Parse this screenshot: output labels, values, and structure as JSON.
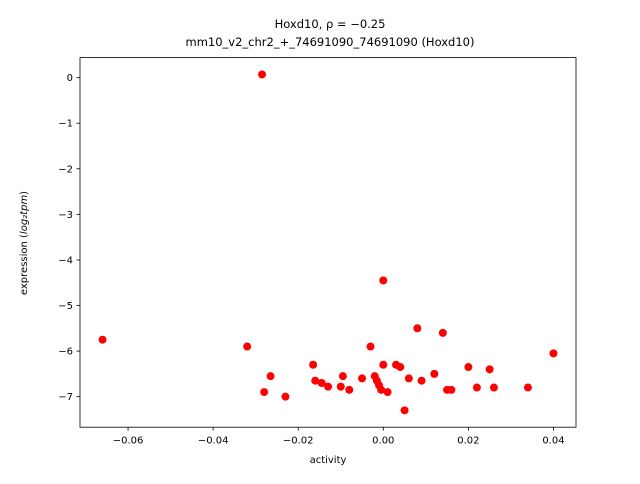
{
  "chart_data": {
    "type": "scatter",
    "title_line1": "Hoxd10, ρ = −0.25",
    "title_line2": "mm10_v2_chr2_+_74691090_74691090 (Hoxd10)",
    "xlabel": "activity",
    "ylabel_prefix": "expression (",
    "ylabel_math": "log₂tpm",
    "ylabel_suffix": ")",
    "xlim": [
      -0.0713,
      0.0453
    ],
    "ylim": [
      -7.67,
      0.44
    ],
    "grid": false,
    "legend": "none",
    "marker_color": "#ff0000",
    "marker_radius": 4,
    "xticks": [
      {
        "v": -0.06,
        "label": "−0.06"
      },
      {
        "v": -0.04,
        "label": "−0.04"
      },
      {
        "v": -0.02,
        "label": "−0.02"
      },
      {
        "v": 0.0,
        "label": "0.00"
      },
      {
        "v": 0.02,
        "label": "0.02"
      },
      {
        "v": 0.04,
        "label": "0.04"
      }
    ],
    "yticks": [
      {
        "v": 0,
        "label": "0"
      },
      {
        "v": -1,
        "label": "−1"
      },
      {
        "v": -2,
        "label": "−2"
      },
      {
        "v": -3,
        "label": "−3"
      },
      {
        "v": -4,
        "label": "−4"
      },
      {
        "v": -5,
        "label": "−5"
      },
      {
        "v": -6,
        "label": "−6"
      },
      {
        "v": -7,
        "label": "−7"
      }
    ],
    "points": [
      [
        -0.066,
        -5.75
      ],
      [
        -0.0285,
        0.07
      ],
      [
        -0.032,
        -5.9
      ],
      [
        -0.028,
        -6.9
      ],
      [
        -0.0265,
        -6.55
      ],
      [
        -0.023,
        -7.0
      ],
      [
        -0.0165,
        -6.3
      ],
      [
        -0.016,
        -6.65
      ],
      [
        -0.0145,
        -6.7
      ],
      [
        -0.013,
        -6.78
      ],
      [
        -0.01,
        -6.78
      ],
      [
        -0.0095,
        -6.55
      ],
      [
        -0.008,
        -6.85
      ],
      [
        -0.005,
        -6.6
      ],
      [
        -0.003,
        -5.9
      ],
      [
        -0.002,
        -6.55
      ],
      [
        -0.0015,
        -6.65
      ],
      [
        -0.001,
        -6.75
      ],
      [
        0.0,
        -4.45
      ],
      [
        0.0,
        -6.3
      ],
      [
        -0.0005,
        -6.85
      ],
      [
        0.001,
        -6.9
      ],
      [
        0.003,
        -6.3
      ],
      [
        0.004,
        -6.35
      ],
      [
        0.005,
        -7.3
      ],
      [
        0.006,
        -6.6
      ],
      [
        0.008,
        -5.5
      ],
      [
        0.009,
        -6.65
      ],
      [
        0.012,
        -6.5
      ],
      [
        0.014,
        -5.6
      ],
      [
        0.015,
        -6.85
      ],
      [
        0.016,
        -6.85
      ],
      [
        0.02,
        -6.35
      ],
      [
        0.022,
        -6.8
      ],
      [
        0.025,
        -6.4
      ],
      [
        0.026,
        -6.8
      ],
      [
        0.034,
        -6.8
      ],
      [
        0.04,
        -6.05
      ]
    ]
  }
}
